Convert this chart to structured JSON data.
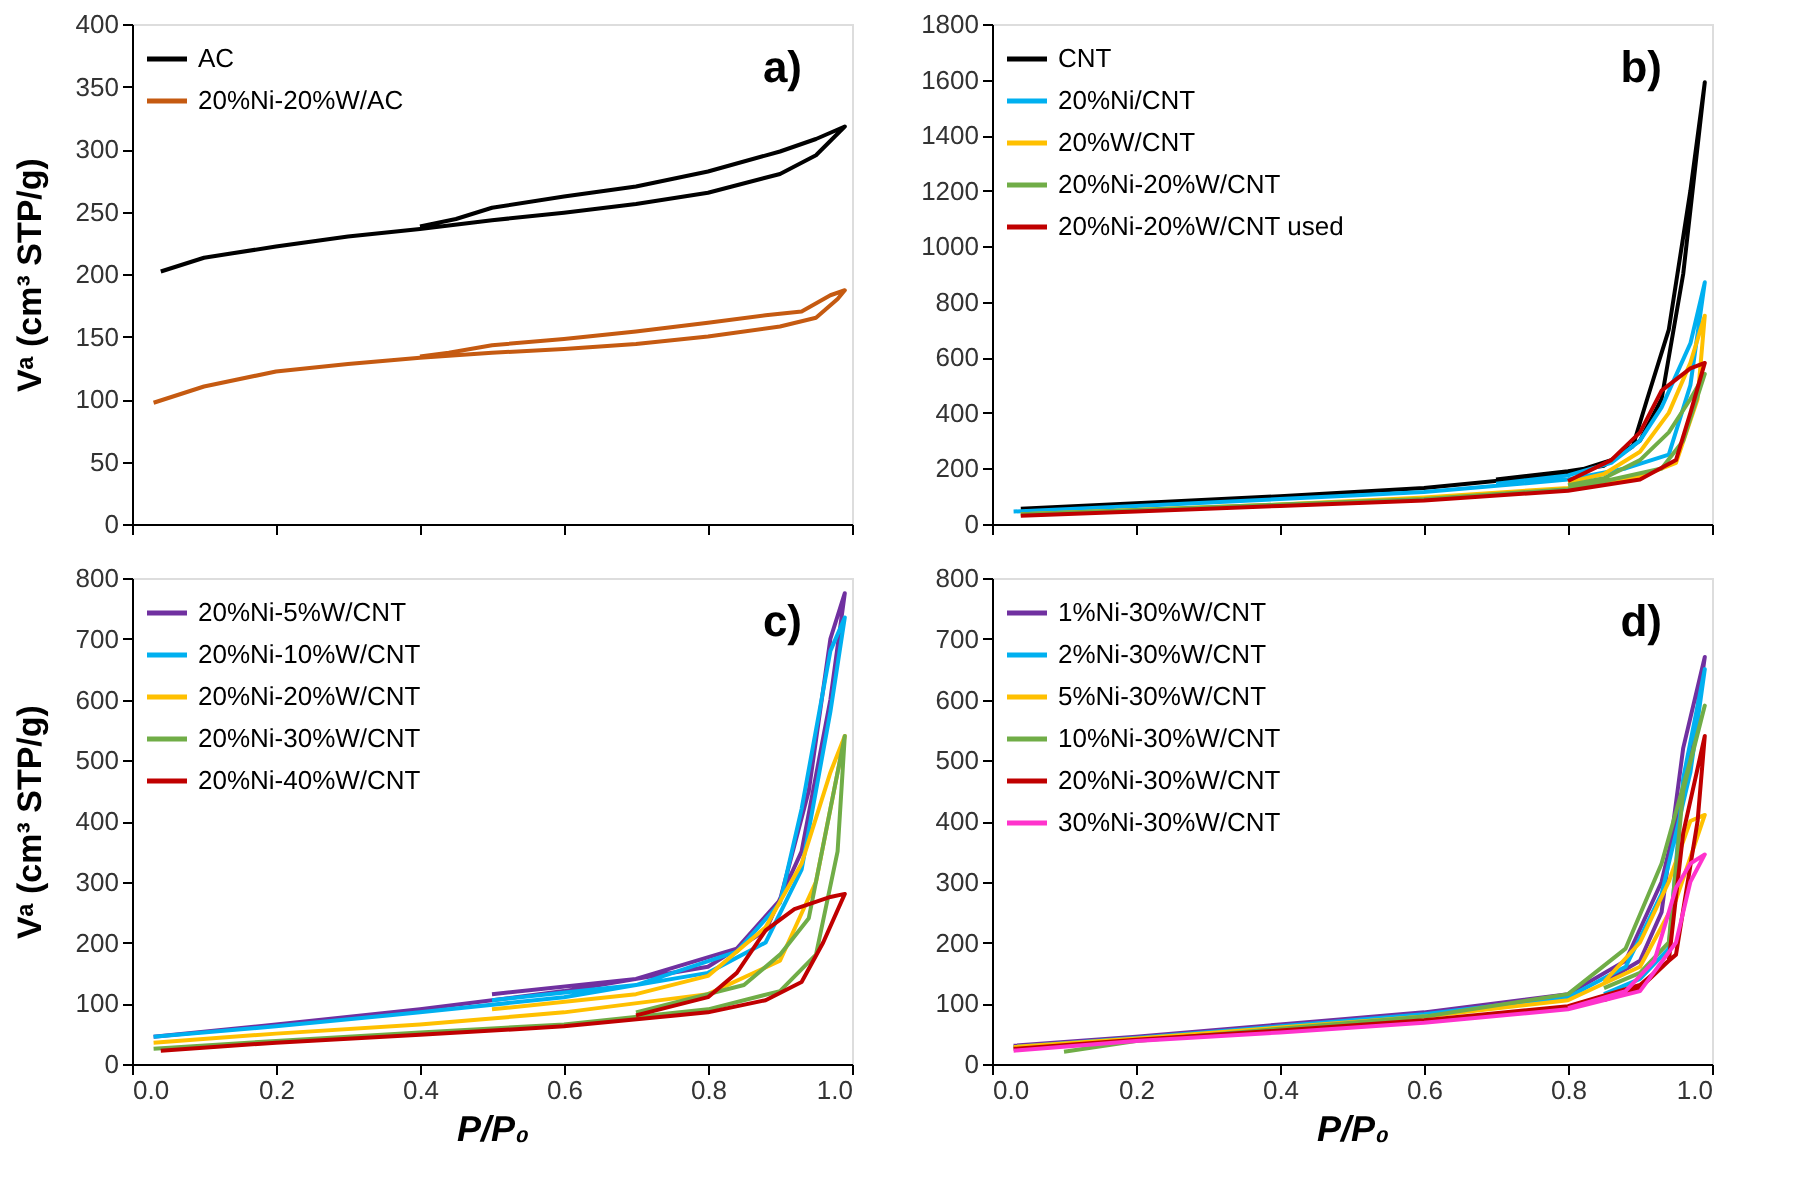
{
  "chart_data": [
    {
      "type": "line",
      "annotations": [
        "a)"
      ],
      "ylabel": "Vᵃ (cm³ STP/g)",
      "xlim": [
        0,
        1
      ],
      "xticks": [
        {
          "value": 0,
          "label": null
        },
        {
          "value": 0.2,
          "label": null
        },
        {
          "value": 0.4,
          "label": null
        },
        {
          "value": 0.6,
          "label": null
        },
        {
          "value": 0.8,
          "label": null
        },
        {
          "value": 1,
          "label": null
        }
      ],
      "ylim": [
        0,
        400
      ],
      "yticks": [
        0,
        50,
        100,
        150,
        200,
        250,
        300,
        350,
        400
      ],
      "tick_labels": "y",
      "legend": "top left",
      "grid": false,
      "series": [
        {
          "name": "AC",
          "color": "#000000",
          "x": [
            0.04,
            0.1,
            0.2,
            0.3,
            0.4,
            0.5,
            0.6,
            0.7,
            0.8,
            0.9,
            0.95,
            0.99,
            0.95,
            0.9,
            0.8,
            0.7,
            0.6,
            0.5,
            0.45,
            0.4
          ],
          "values": [
            202,
            213,
            222,
            230,
            236,
            243,
            249,
            256,
            265,
            280,
            295,
            318,
            308,
            298,
            282,
            270,
            262,
            253,
            244,
            238
          ]
        },
        {
          "name": "20%Ni-20%W/AC",
          "color": "#c55a11",
          "x": [
            0.03,
            0.1,
            0.2,
            0.3,
            0.4,
            0.5,
            0.6,
            0.7,
            0.8,
            0.9,
            0.95,
            0.98,
            0.99,
            0.97,
            0.93,
            0.88,
            0.8,
            0.7,
            0.6,
            0.5,
            0.44,
            0.4
          ],
          "values": [
            97,
            110,
            122,
            128,
            133,
            137,
            140,
            144,
            150,
            158,
            165,
            180,
            187,
            183,
            170,
            167,
            161,
            154,
            148,
            143,
            137,
            134
          ]
        }
      ]
    },
    {
      "type": "line",
      "annotations": [
        "b)"
      ],
      "xlim": [
        0,
        1
      ],
      "xticks": [
        {
          "value": 0,
          "label": null
        },
        {
          "value": 0.2,
          "label": null
        },
        {
          "value": 0.4,
          "label": null
        },
        {
          "value": 0.6,
          "label": null
        },
        {
          "value": 0.8,
          "label": null
        },
        {
          "value": 1,
          "label": null
        }
      ],
      "ylim": [
        0,
        1800
      ],
      "yticks": [
        0,
        200,
        400,
        600,
        800,
        1000,
        1200,
        1400,
        1600,
        1800
      ],
      "tick_labels": "y",
      "legend": "top left",
      "grid": false,
      "series": [
        {
          "name": "CNT",
          "color": "#000000",
          "x": [
            0.04,
            0.2,
            0.4,
            0.6,
            0.8,
            0.86,
            0.9,
            0.93,
            0.96,
            0.99,
            0.97,
            0.94,
            0.91,
            0.89,
            0.85,
            0.8,
            0.7
          ],
          "values": [
            55,
            75,
            100,
            130,
            180,
            230,
            300,
            450,
            900,
            1590,
            1200,
            700,
            450,
            280,
            210,
            190,
            160
          ]
        },
        {
          "name": "20%Ni/CNT",
          "color": "#00b0f0",
          "x": [
            0.03,
            0.2,
            0.4,
            0.6,
            0.8,
            0.88,
            0.94,
            0.97,
            0.99,
            0.97,
            0.93,
            0.9,
            0.86,
            0.8,
            0.7
          ],
          "values": [
            45,
            65,
            90,
            115,
            160,
            200,
            250,
            500,
            870,
            650,
            420,
            300,
            220,
            175,
            145
          ]
        },
        {
          "name": "20%W/CNT",
          "color": "#ffc000",
          "x": [
            0.04,
            0.2,
            0.4,
            0.6,
            0.8,
            0.9,
            0.95,
            0.98,
            0.99,
            0.97,
            0.94,
            0.9,
            0.85,
            0.8
          ],
          "values": [
            35,
            50,
            70,
            95,
            130,
            170,
            220,
            450,
            750,
            580,
            400,
            260,
            180,
            150
          ]
        },
        {
          "name": "20%Ni-20%W/CNT",
          "color": "#70ad47",
          "x": [
            0.04,
            0.2,
            0.4,
            0.6,
            0.8,
            0.93,
            0.96,
            0.99,
            0.97,
            0.94,
            0.9,
            0.85,
            0.8
          ],
          "values": [
            35,
            50,
            70,
            90,
            125,
            200,
            300,
            540,
            450,
            330,
            230,
            165,
            140
          ]
        },
        {
          "name": "20%Ni-20%W/CNT used",
          "color": "#c00000",
          "x": [
            0.04,
            0.2,
            0.4,
            0.6,
            0.8,
            0.9,
            0.95,
            0.97,
            0.99,
            0.97,
            0.93,
            0.9,
            0.86,
            0.8
          ],
          "values": [
            30,
            45,
            65,
            85,
            120,
            160,
            230,
            400,
            580,
            560,
            480,
            330,
            230,
            155
          ]
        }
      ]
    },
    {
      "type": "line",
      "annotations": [
        "c)"
      ],
      "xlabel": "P/P₀",
      "ylabel": "Vᵃ (cm³ STP/g)",
      "xlim": [
        0,
        1
      ],
      "xticks": [
        {
          "value": 0,
          "label": "0.0"
        },
        0.2,
        0.4,
        0.6,
        0.8,
        {
          "value": 1,
          "label": "1.0"
        }
      ],
      "ylim": [
        0,
        800
      ],
      "yticks": [
        0,
        100,
        200,
        300,
        400,
        500,
        600,
        700,
        800
      ],
      "legend": "top left",
      "grid": false,
      "series": [
        {
          "name": "20%Ni-5%W/CNT",
          "color": "#7030a0",
          "x": [
            0.03,
            0.2,
            0.4,
            0.6,
            0.8,
            0.88,
            0.93,
            0.97,
            0.99,
            0.97,
            0.94,
            0.9,
            0.84,
            0.7,
            0.5
          ],
          "values": [
            45,
            65,
            90,
            120,
            160,
            220,
            350,
            600,
            775,
            700,
            450,
            270,
            190,
            140,
            115
          ]
        },
        {
          "name": "20%Ni-10%W/CNT",
          "color": "#00b0f0",
          "x": [
            0.03,
            0.2,
            0.4,
            0.6,
            0.8,
            0.88,
            0.93,
            0.97,
            0.99,
            0.97,
            0.93,
            0.9,
            0.84,
            0.7,
            0.5
          ],
          "values": [
            45,
            62,
            85,
            110,
            150,
            200,
            320,
            580,
            735,
            680,
            420,
            265,
            185,
            130,
            105
          ]
        },
        {
          "name": "20%Ni-20%W/CNT",
          "color": "#ffc000",
          "x": [
            0.03,
            0.2,
            0.4,
            0.6,
            0.8,
            0.9,
            0.95,
            0.99,
            0.97,
            0.93,
            0.88,
            0.8,
            0.7,
            0.5
          ],
          "values": [
            35,
            50,
            65,
            85,
            115,
            170,
            300,
            540,
            480,
            330,
            225,
            145,
            115,
            90
          ]
        },
        {
          "name": "20%Ni-30%W/CNT",
          "color": "#70ad47",
          "x": [
            0.03,
            0.2,
            0.4,
            0.6,
            0.8,
            0.9,
            0.95,
            0.98,
            0.99,
            0.97,
            0.94,
            0.9,
            0.85,
            0.7
          ],
          "values": [
            25,
            38,
            52,
            65,
            90,
            120,
            180,
            350,
            540,
            420,
            240,
            180,
            130,
            85
          ]
        },
        {
          "name": "20%Ni-40%W/CNT",
          "color": "#c00000",
          "x": [
            0.04,
            0.2,
            0.4,
            0.6,
            0.8,
            0.88,
            0.93,
            0.96,
            0.99,
            0.97,
            0.92,
            0.88,
            0.84,
            0.8,
            0.7
          ],
          "values": [
            22,
            35,
            48,
            62,
            85,
            105,
            135,
            200,
            280,
            275,
            255,
            220,
            150,
            110,
            80
          ]
        }
      ]
    },
    {
      "type": "line",
      "annotations": [
        "d)"
      ],
      "xlabel": "P/P₀",
      "xlim": [
        0,
        1
      ],
      "xticks": [
        {
          "value": 0,
          "label": "0.0"
        },
        0.2,
        0.4,
        0.6,
        0.8,
        {
          "value": 1,
          "label": "1.0"
        }
      ],
      "ylim": [
        0,
        800
      ],
      "yticks": [
        0,
        100,
        200,
        300,
        400,
        500,
        600,
        700,
        800
      ],
      "legend": "top left",
      "grid": false,
      "series": [
        {
          "name": "1%Ni-30%W/CNT",
          "color": "#7030a0",
          "x": [
            0.03,
            0.2,
            0.4,
            0.6,
            0.8,
            0.88,
            0.93,
            0.97,
            0.99,
            0.96,
            0.93,
            0.9,
            0.85
          ],
          "values": [
            30,
            45,
            65,
            85,
            115,
            170,
            300,
            500,
            670,
            520,
            250,
            170,
            135
          ]
        },
        {
          "name": "2%Ni-30%W/CNT",
          "color": "#00b0f0",
          "x": [
            0.03,
            0.2,
            0.4,
            0.6,
            0.8,
            0.88,
            0.93,
            0.97,
            0.99,
            0.96,
            0.94,
            0.9,
            0.85
          ],
          "values": [
            28,
            43,
            62,
            82,
            110,
            160,
            280,
            480,
            650,
            470,
            190,
            140,
            115
          ]
        },
        {
          "name": "5%Ni-30%W/CNT",
          "color": "#ffc000",
          "x": [
            0.03,
            0.2,
            0.4,
            0.6,
            0.8,
            0.9,
            0.95,
            0.99,
            0.97,
            0.94,
            0.9,
            0.85
          ],
          "values": [
            28,
            42,
            60,
            78,
            105,
            160,
            270,
            410,
            400,
            300,
            200,
            135
          ]
        },
        {
          "name": "10%Ni-30%W/CNT",
          "color": "#70ad47",
          "x": [
            0.1,
            0.2,
            0.4,
            0.6,
            0.8,
            0.88,
            0.93,
            0.97,
            0.99,
            0.96,
            0.94,
            0.9,
            0.85
          ],
          "values": [
            20,
            38,
            58,
            78,
            115,
            190,
            330,
            500,
            590,
            450,
            200,
            150,
            125
          ]
        },
        {
          "name": "20%Ni-30%W/CNT",
          "color": "#c00000",
          "x": [
            0.03,
            0.2,
            0.4,
            0.6,
            0.8,
            0.9,
            0.95,
            0.98,
            0.99,
            0.96,
            0.94,
            0.9,
            0.85
          ],
          "values": [
            25,
            40,
            55,
            72,
            95,
            130,
            180,
            400,
            540,
            380,
            170,
            125,
            105
          ]
        },
        {
          "name": "30%Ni-30%W/CNT",
          "color": "#ff33cc",
          "x": [
            0.03,
            0.2,
            0.4,
            0.6,
            0.8,
            0.9,
            0.95,
            0.97,
            0.99,
            0.97,
            0.95,
            0.92,
            0.88,
            0.8
          ],
          "values": [
            22,
            38,
            52,
            68,
            90,
            120,
            200,
            300,
            345,
            330,
            290,
            170,
            120,
            92
          ]
        }
      ]
    }
  ]
}
